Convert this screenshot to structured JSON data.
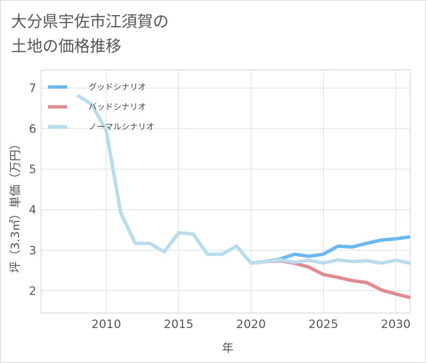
{
  "title_line1": "大分県宇佐市江須賀の",
  "title_line2": "土地の価格推移",
  "chart_data": {
    "type": "line",
    "xlabel": "年",
    "ylabel": "坪（3.3㎡）単価（万円）",
    "xlim": [
      2005.5,
      2031
    ],
    "ylim": [
      1.45,
      7.45
    ],
    "xticks": [
      2010,
      2015,
      2020,
      2025,
      2030
    ],
    "yticks": [
      2,
      3,
      4,
      5,
      6,
      7
    ],
    "grid": true,
    "legend_position": "top-left",
    "series": [
      {
        "name": "グッドシナリオ",
        "color": "#6bb8f0",
        "x": [
          2020,
          2021,
          2022,
          2023,
          2024,
          2025,
          2026,
          2027,
          2028,
          2029,
          2030,
          2031
        ],
        "y": [
          2.68,
          2.72,
          2.78,
          2.9,
          2.85,
          2.9,
          3.1,
          3.08,
          3.17,
          3.25,
          3.28,
          3.33
        ]
      },
      {
        "name": "バッドシナリオ",
        "color": "#e08a92",
        "x": [
          2020,
          2021,
          2022,
          2023,
          2024,
          2025,
          2026,
          2027,
          2028,
          2029,
          2030,
          2031
        ],
        "y": [
          2.68,
          2.72,
          2.74,
          2.68,
          2.58,
          2.4,
          2.33,
          2.25,
          2.2,
          2.02,
          1.92,
          1.83
        ]
      },
      {
        "name": "ノーマルシナリオ",
        "color": "#b8dceb",
        "x": [
          2008,
          2009,
          2010,
          2011,
          2012,
          2013,
          2014,
          2015,
          2016,
          2017,
          2018,
          2019,
          2020,
          2021,
          2022,
          2023,
          2024,
          2025,
          2026,
          2027,
          2028,
          2029,
          2030,
          2031
        ],
        "y": [
          6.82,
          6.6,
          5.95,
          3.92,
          3.17,
          3.17,
          2.96,
          3.43,
          3.4,
          2.9,
          2.9,
          3.1,
          2.68,
          2.72,
          2.76,
          2.7,
          2.75,
          2.68,
          2.76,
          2.72,
          2.74,
          2.68,
          2.75,
          2.68
        ]
      }
    ]
  }
}
